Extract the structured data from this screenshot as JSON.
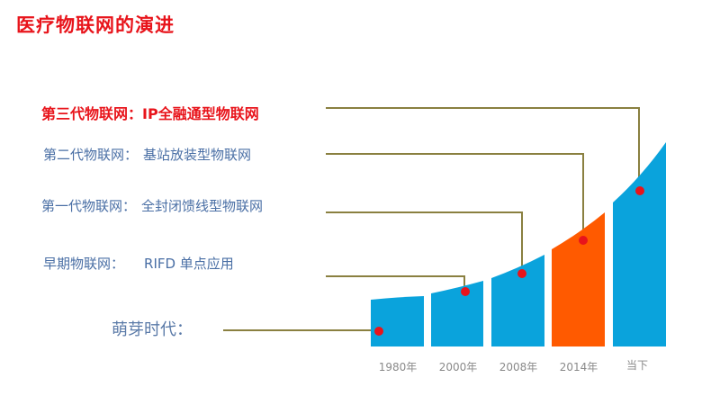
{
  "title": "医疗物联网的演进",
  "stages": [
    {
      "name": "第三代物联网：",
      "desc": "IP全融通型物联网"
    },
    {
      "name": "第二代物联网：",
      "desc": "基站放装型物联网"
    },
    {
      "name": "第一代物联网：",
      "desc": "全封闭馈线型物联网"
    },
    {
      "name": "早期物联网：",
      "desc": "RIFD 单点应用"
    },
    {
      "name": "萌芽时代：",
      "desc": ""
    }
  ],
  "years": [
    "1980年",
    "2000年",
    "2008年",
    "2014年",
    "当下"
  ],
  "colors": {
    "bar": "#0aa3dc",
    "highlight_bar": "#ff5a00",
    "connector": "#8a8040",
    "dot": "#e8141b",
    "title": "#e8141b"
  }
}
